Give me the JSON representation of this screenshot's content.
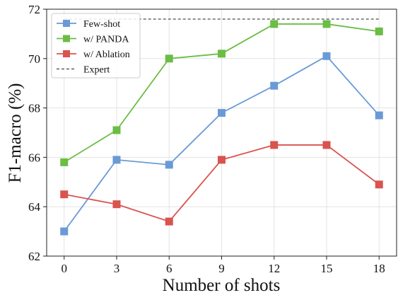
{
  "chart_data": {
    "type": "line",
    "title": "",
    "xlabel": "Number of shots",
    "ylabel": "F1-macro (%)",
    "x": [
      0,
      3,
      6,
      9,
      12,
      15,
      18
    ],
    "xlim": [
      -1,
      19
    ],
    "ylim": [
      62,
      72
    ],
    "xticks": [
      0,
      3,
      6,
      9,
      12,
      15,
      18
    ],
    "yticks": [
      62,
      64,
      66,
      68,
      70,
      72
    ],
    "grid": true,
    "legend_position": "top-left",
    "series": [
      {
        "name": "Few-shot",
        "color": "#6a9ad6",
        "marker": "square",
        "values": [
          63.0,
          65.9,
          65.7,
          67.8,
          68.9,
          70.1,
          67.7
        ]
      },
      {
        "name": "w/ PANDA",
        "color": "#6bbd45",
        "marker": "square",
        "values": [
          65.8,
          67.1,
          70.0,
          70.2,
          71.4,
          71.4,
          71.1
        ]
      },
      {
        "name": "w/ Ablation",
        "color": "#d9534f",
        "marker": "square",
        "values": [
          64.5,
          64.1,
          63.4,
          65.9,
          66.5,
          66.5,
          64.9
        ]
      }
    ],
    "reference_lines": [
      {
        "name": "Expert",
        "color": "#222222",
        "style": "dashed",
        "value": 71.6
      }
    ]
  }
}
